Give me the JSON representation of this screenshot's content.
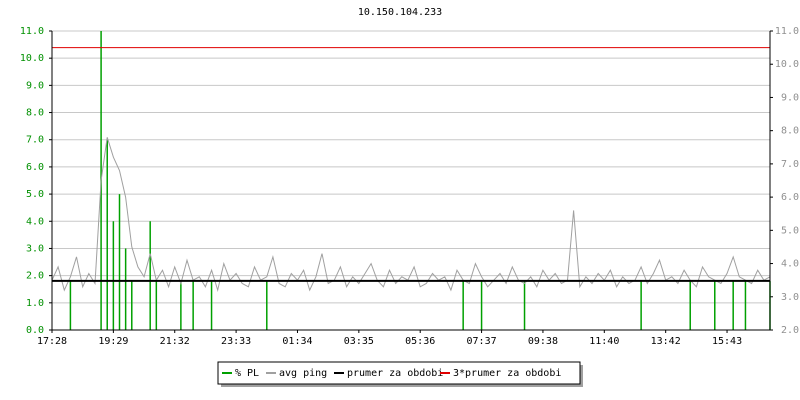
{
  "chart_data": {
    "type": "line",
    "title": "10.150.104.233",
    "xlim": [
      0,
      117
    ],
    "xticks": [
      {
        "value": 0,
        "label": "17:28"
      },
      {
        "value": 10,
        "label": "19:29"
      },
      {
        "value": 20,
        "label": "21:32"
      },
      {
        "value": 30,
        "label": "23:33"
      },
      {
        "value": 40,
        "label": "01:34"
      },
      {
        "value": 50,
        "label": "03:35"
      },
      {
        "value": 60,
        "label": "05:36"
      },
      {
        "value": 70,
        "label": "07:37"
      },
      {
        "value": 80,
        "label": "09:38"
      },
      {
        "value": 90,
        "label": "11:40"
      },
      {
        "value": 100,
        "label": "13:42"
      },
      {
        "value": 110,
        "label": "15:43"
      }
    ],
    "ylim": [
      0,
      11
    ],
    "yticks": [
      {
        "value": 0,
        "label": "0.0"
      },
      {
        "value": 1,
        "label": "1.0"
      },
      {
        "value": 2,
        "label": "2.0"
      },
      {
        "value": 3,
        "label": "3.0"
      },
      {
        "value": 4,
        "label": "4.0"
      },
      {
        "value": 5,
        "label": "5.0"
      },
      {
        "value": 6,
        "label": "6.0"
      },
      {
        "value": 7,
        "label": "7.0"
      },
      {
        "value": 8,
        "label": "8.0"
      },
      {
        "value": 9,
        "label": "9.0"
      },
      {
        "value": 10,
        "label": "10.0"
      },
      {
        "value": 11,
        "label": "11.0"
      }
    ],
    "y2lim": [
      2,
      11
    ],
    "y2ticks": [
      {
        "value": 2,
        "label": "2.0"
      },
      {
        "value": 3,
        "label": "3.0"
      },
      {
        "value": 4,
        "label": "4.0"
      },
      {
        "value": 5,
        "label": "5.0"
      },
      {
        "value": 6,
        "label": "6.0"
      },
      {
        "value": 7,
        "label": "7.0"
      },
      {
        "value": 8,
        "label": "8.0"
      },
      {
        "value": 9,
        "label": "9.0"
      },
      {
        "value": 10,
        "label": "10.0"
      },
      {
        "value": 11,
        "label": "11.0"
      }
    ],
    "grid": true,
    "series": [
      {
        "name": "% PL",
        "color": "#00a000",
        "axis": "y",
        "values": [
          0,
          0,
          0,
          1.8,
          0,
          0,
          0,
          0,
          11.0,
          7.0,
          4.0,
          5.0,
          3.0,
          1.8,
          0,
          0,
          4.0,
          1.8,
          0,
          0,
          0,
          1.8,
          0,
          1.8,
          0,
          0,
          1.8,
          0,
          0,
          0,
          0,
          0,
          0,
          0,
          0,
          1.8,
          0,
          0,
          0,
          0,
          0,
          0,
          0,
          0,
          0,
          0,
          0,
          0,
          0,
          0,
          0,
          0,
          0,
          0,
          0,
          0,
          0,
          0,
          0,
          0,
          0,
          0,
          0,
          0,
          0,
          0,
          0,
          1.8,
          0,
          0,
          1.8,
          0,
          0,
          0,
          0,
          0,
          0,
          1.8,
          0,
          0,
          0,
          0,
          0,
          0,
          0,
          0,
          0,
          0,
          0,
          0,
          0,
          0,
          0,
          0,
          0,
          0,
          1.8,
          0,
          0,
          0,
          0,
          0,
          0,
          0,
          1.8,
          0,
          0,
          0,
          1.8,
          0,
          0,
          1.8,
          0,
          1.8,
          0,
          0,
          0,
          1.8
        ]
      },
      {
        "name": "avg ping",
        "color": "#a0a0a0",
        "axis": "y2",
        "values": [
          3.5,
          3.9,
          3.2,
          3.6,
          4.2,
          3.3,
          3.7,
          3.4,
          6.5,
          7.8,
          7.2,
          6.8,
          6.0,
          4.5,
          3.9,
          3.6,
          4.3,
          3.5,
          3.8,
          3.3,
          3.9,
          3.4,
          4.1,
          3.5,
          3.6,
          3.3,
          3.8,
          3.2,
          4.0,
          3.5,
          3.7,
          3.4,
          3.3,
          3.9,
          3.5,
          3.6,
          4.2,
          3.4,
          3.3,
          3.7,
          3.5,
          3.8,
          3.2,
          3.6,
          4.3,
          3.4,
          3.5,
          3.9,
          3.3,
          3.6,
          3.4,
          3.7,
          4.0,
          3.5,
          3.3,
          3.8,
          3.4,
          3.6,
          3.5,
          3.9,
          3.3,
          3.4,
          3.7,
          3.5,
          3.6,
          3.2,
          3.8,
          3.5,
          3.4,
          4.0,
          3.6,
          3.3,
          3.5,
          3.7,
          3.4,
          3.9,
          3.5,
          3.4,
          3.6,
          3.3,
          3.8,
          3.5,
          3.7,
          3.4,
          3.5,
          5.6,
          3.3,
          3.6,
          3.4,
          3.7,
          3.5,
          3.8,
          3.3,
          3.6,
          3.4,
          3.5,
          3.9,
          3.4,
          3.7,
          4.1,
          3.5,
          3.6,
          3.4,
          3.8,
          3.5,
          3.3,
          3.9,
          3.6,
          3.5,
          3.4,
          3.7,
          4.2,
          3.6,
          3.5,
          3.4,
          3.8,
          3.5,
          3.6
        ]
      },
      {
        "name": "prumer za obdobi",
        "color": "#000000",
        "axis": "y2",
        "value": 3.48
      },
      {
        "name": "3*prumer za obdobi",
        "color": "#e00000",
        "axis": "y2",
        "value": 10.5
      }
    ]
  }
}
